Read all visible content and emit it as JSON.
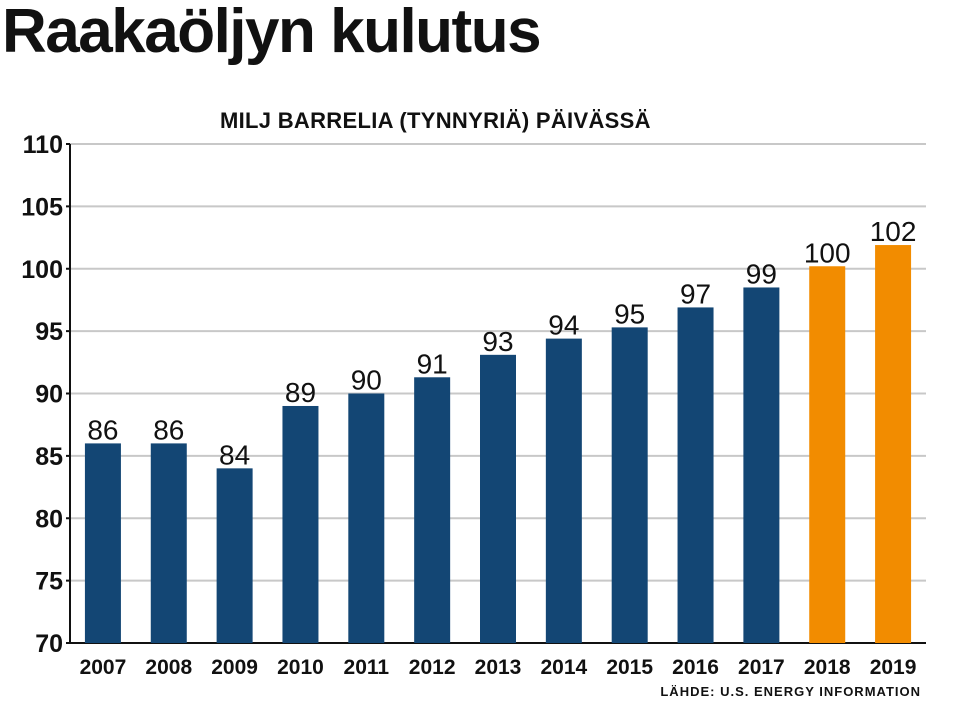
{
  "title": "Raakaöljyn kulutus",
  "subtitle": "MILJ BARRELIA (TYNNYRIÄ) PÄIVÄSSÄ",
  "source": "LÄHDE: U.S. ENERGY INFORMATION",
  "colors": {
    "actual": "#134674",
    "forecast": "#f28c00",
    "grid": "#c8c8c8",
    "axis": "#111111"
  },
  "chart_data": {
    "type": "bar",
    "title": "Raakaöljyn kulutus",
    "subtitle": "MILJ BARRELIA (TYNNYRIÄ) PÄIVÄSSÄ",
    "xlabel": "",
    "ylabel": "",
    "ylim": [
      70,
      110
    ],
    "yticks": [
      70,
      75,
      80,
      85,
      90,
      95,
      100,
      105,
      110
    ],
    "categories": [
      "2007",
      "2008",
      "2009",
      "2010",
      "2011",
      "2012",
      "2013",
      "2014",
      "2015",
      "2016",
      "2017",
      "2018",
      "2019"
    ],
    "values": [
      86,
      86,
      84,
      89,
      90,
      91.3,
      93.1,
      94.4,
      95.3,
      96.9,
      98.5,
      100.2,
      101.9
    ],
    "data_labels": [
      "86",
      "86",
      "84",
      "89",
      "90",
      "91",
      "93",
      "94",
      "95",
      "97",
      "99",
      "100",
      "102"
    ],
    "forecast_categories": [
      "2018",
      "2019"
    ],
    "grid": true,
    "legend": "none"
  }
}
